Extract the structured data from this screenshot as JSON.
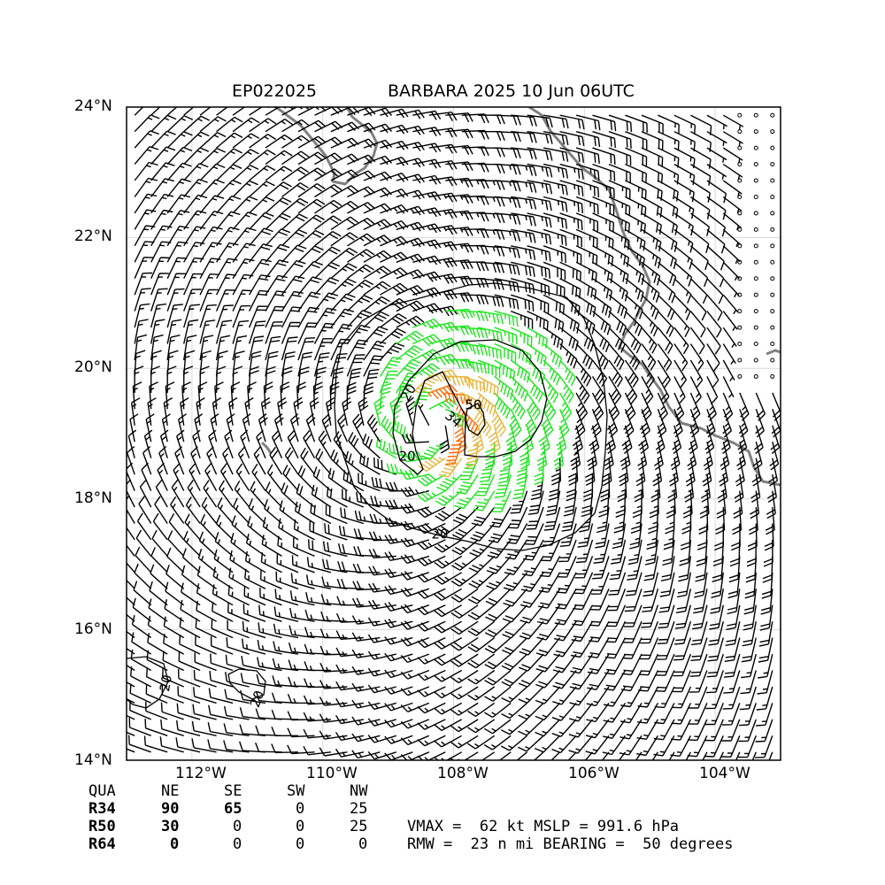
{
  "title": {
    "left": "EP022025",
    "right": "BARBARA 2025 10 Jun 06UTC"
  },
  "axes": {
    "lat_labels": [
      "24°N",
      "22°N",
      "20°N",
      "18°N",
      "16°N",
      "14°N"
    ],
    "lon_labels": [
      "112°W",
      "110°W",
      "108°W",
      "106°W",
      "104°W"
    ],
    "lat_range": [
      14,
      24
    ],
    "lon_range": [
      -113,
      -103
    ],
    "grid": true
  },
  "contours": {
    "labels": [
      "20",
      "20",
      "20",
      "34",
      "50",
      "20",
      "20"
    ],
    "levels": [
      20,
      34,
      50
    ]
  },
  "wind_colors": {
    "below_34": "#000000",
    "34_to_50": "#19e619",
    "50_to_64": "#e8b43a",
    "64_plus": "#ff6600"
  },
  "coast_color": "#808080",
  "radii_table": {
    "header": [
      "QUA",
      "NE",
      "SE",
      "SW",
      "NW"
    ],
    "rows": [
      {
        "label": "R34",
        "values": [
          "90",
          "65",
          "0",
          "25"
        ]
      },
      {
        "label": "R50",
        "values": [
          "30",
          "0",
          "0",
          "25"
        ]
      },
      {
        "label": "R64",
        "values": [
          "0",
          "0",
          "0",
          "0"
        ]
      }
    ]
  },
  "info": {
    "line1": "VMAX =  62 kt MSLP = 991.6 hPa",
    "line2": "RMW =  23 n mi BEARING =  50 degrees"
  }
}
